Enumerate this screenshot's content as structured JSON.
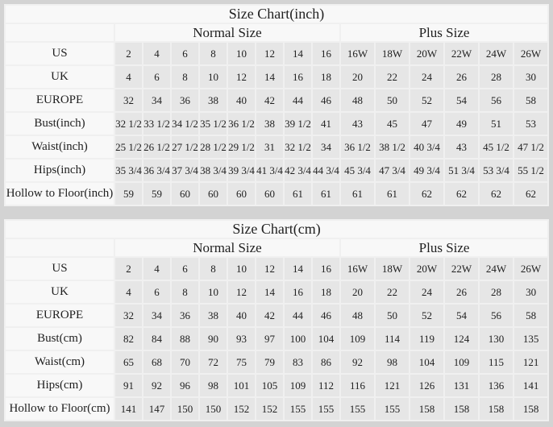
{
  "page_bg": "#d3d3d3",
  "accent_colors": {
    "cell_light": "#f8f8f8",
    "cell_gray": "#e6e6e6",
    "grid_gap": "#f0f0f0",
    "text": "#1f1f1f"
  },
  "chart_data": [
    {
      "type": "table",
      "title": "Size Chart(inch)",
      "group_headers": [
        "Normal Size",
        "Plus Size"
      ],
      "normal_column_count": 8,
      "plus_column_count": 6,
      "rows": [
        {
          "label": "US",
          "normal": [
            "2",
            "4",
            "6",
            "8",
            "10",
            "12",
            "14",
            "16"
          ],
          "plus": [
            "16W",
            "18W",
            "20W",
            "22W",
            "24W",
            "26W"
          ]
        },
        {
          "label": "UK",
          "normal": [
            "4",
            "6",
            "8",
            "10",
            "12",
            "14",
            "16",
            "18"
          ],
          "plus": [
            "20",
            "22",
            "24",
            "26",
            "28",
            "30"
          ]
        },
        {
          "label": "EUROPE",
          "normal": [
            "32",
            "34",
            "36",
            "38",
            "40",
            "42",
            "44",
            "46"
          ],
          "plus": [
            "48",
            "50",
            "52",
            "54",
            "56",
            "58"
          ]
        },
        {
          "label": "Bust(inch)",
          "normal": [
            "32 1/2",
            "33 1/2",
            "34 1/2",
            "35 1/2",
            "36 1/2",
            "38",
            "39 1/2",
            "41"
          ],
          "plus": [
            "43",
            "45",
            "47",
            "49",
            "51",
            "53"
          ]
        },
        {
          "label": "Waist(inch)",
          "normal": [
            "25 1/2",
            "26 1/2",
            "27 1/2",
            "28 1/2",
            "29 1/2",
            "31",
            "32 1/2",
            "34"
          ],
          "plus": [
            "36 1/2",
            "38 1/2",
            "40 3/4",
            "43",
            "45 1/2",
            "47 1/2"
          ]
        },
        {
          "label": "Hips(inch)",
          "normal": [
            "35 3/4",
            "36 3/4",
            "37 3/4",
            "38 3/4",
            "39 3/4",
            "41 3/4",
            "42 3/4",
            "44 3/4"
          ],
          "plus": [
            "45 3/4",
            "47 3/4",
            "49 3/4",
            "51 3/4",
            "53 3/4",
            "55 1/2"
          ]
        },
        {
          "label": "Hollow to Floor(inch)",
          "normal": [
            "59",
            "59",
            "60",
            "60",
            "60",
            "60",
            "61",
            "61"
          ],
          "plus": [
            "61",
            "61",
            "62",
            "62",
            "62",
            "62"
          ]
        }
      ]
    },
    {
      "type": "table",
      "title": "Size Chart(cm)",
      "group_headers": [
        "Normal Size",
        "Plus Size"
      ],
      "normal_column_count": 8,
      "plus_column_count": 6,
      "rows": [
        {
          "label": "US",
          "normal": [
            "2",
            "4",
            "6",
            "8",
            "10",
            "12",
            "14",
            "16"
          ],
          "plus": [
            "16W",
            "18W",
            "20W",
            "22W",
            "24W",
            "26W"
          ]
        },
        {
          "label": "UK",
          "normal": [
            "4",
            "6",
            "8",
            "10",
            "12",
            "14",
            "16",
            "18"
          ],
          "plus": [
            "20",
            "22",
            "24",
            "26",
            "28",
            "30"
          ]
        },
        {
          "label": "EUROPE",
          "normal": [
            "32",
            "34",
            "36",
            "38",
            "40",
            "42",
            "44",
            "46"
          ],
          "plus": [
            "48",
            "50",
            "52",
            "54",
            "56",
            "58"
          ]
        },
        {
          "label": "Bust(cm)",
          "normal": [
            "82",
            "84",
            "88",
            "90",
            "93",
            "97",
            "100",
            "104"
          ],
          "plus": [
            "109",
            "114",
            "119",
            "124",
            "130",
            "135"
          ]
        },
        {
          "label": "Waist(cm)",
          "normal": [
            "65",
            "68",
            "70",
            "72",
            "75",
            "79",
            "83",
            "86"
          ],
          "plus": [
            "92",
            "98",
            "104",
            "109",
            "115",
            "121"
          ]
        },
        {
          "label": "Hips(cm)",
          "normal": [
            "91",
            "92",
            "96",
            "98",
            "101",
            "105",
            "109",
            "112"
          ],
          "plus": [
            "116",
            "121",
            "126",
            "131",
            "136",
            "141"
          ]
        },
        {
          "label": "Hollow to Floor(cm)",
          "normal": [
            "141",
            "147",
            "150",
            "150",
            "152",
            "152",
            "155",
            "155"
          ],
          "plus": [
            "155",
            "155",
            "158",
            "158",
            "158",
            "158"
          ]
        }
      ]
    }
  ]
}
